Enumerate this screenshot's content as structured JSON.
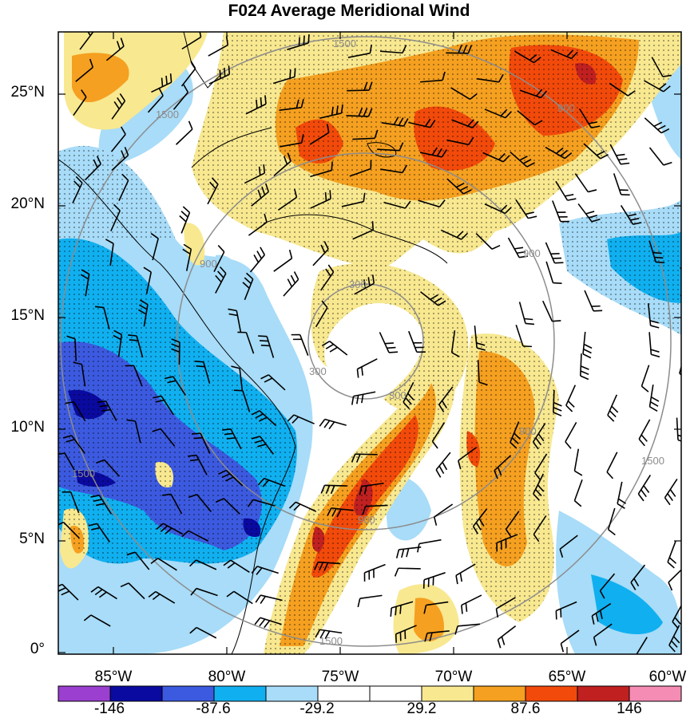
{
  "title": "F024 Average Meridional Wind",
  "lat_labels": [
    "25°N",
    "20°N",
    "15°N",
    "10°N",
    "5°N",
    "0°"
  ],
  "lon_labels": [
    "85°W",
    "80°W",
    "75°W",
    "70°W",
    "65°W",
    "60°W"
  ],
  "colorbar": {
    "labels": [
      "-146",
      "-87.6",
      "-29.2",
      "29.2",
      "87.6",
      "146"
    ],
    "colors": [
      "#9b3fd0",
      "#0a0aa0",
      "#3c5ae0",
      "#10b0f0",
      "#a8dcf8",
      "#ffffff",
      "#ffffff",
      "#f8e890",
      "#f5a020",
      "#f24a0a",
      "#c02020",
      "#f58cb4"
    ]
  },
  "range_ring_labels": [
    "1500",
    "1500",
    "900",
    "900",
    "900",
    "300",
    "300",
    "300",
    "900",
    "1500",
    "1500",
    "900",
    "1500"
  ],
  "map": {
    "lat_range": [
      0,
      27.5
    ],
    "lon_range": [
      -87.5,
      -60
    ],
    "storm_center": {
      "lon": -74.8,
      "lat": 14.1
    },
    "range_rings_km": [
      300,
      900,
      1500
    ],
    "stippling": "dotted shading over filled colored areas",
    "wind_barbs": "black barbs overlaid across domain"
  }
}
